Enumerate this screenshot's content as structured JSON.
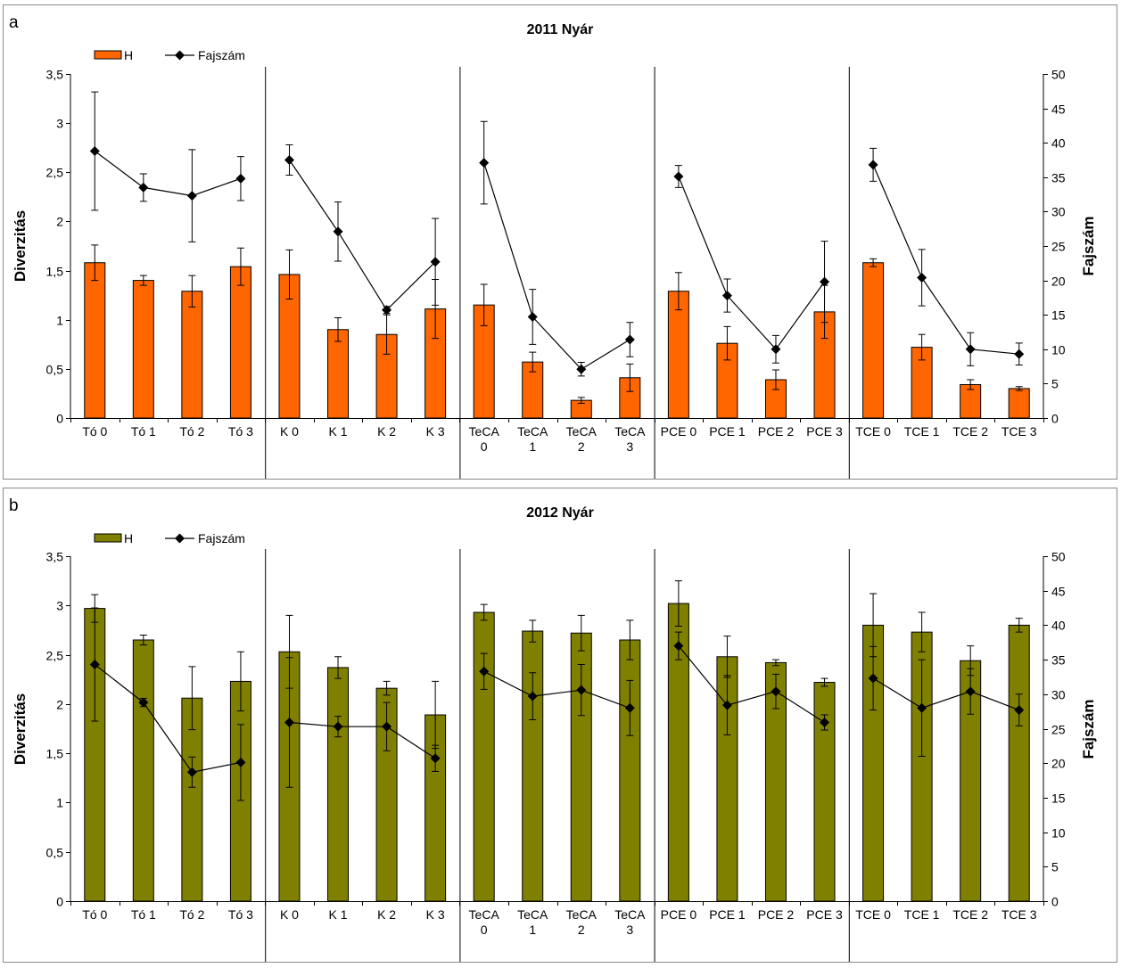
{
  "colors": {
    "panel_a_bar": "#FF6600",
    "panel_b_bar": "#808000",
    "line": "#000000"
  },
  "chart_data": [
    {
      "type": "bar",
      "panel": "a",
      "title": "2011 Nyár",
      "ylabel": "Diverzitás",
      "y2label": "Fajszám",
      "legend": [
        "H",
        "Fajszám"
      ],
      "legend_position": "top-left",
      "ylim": [
        0,
        3.5
      ],
      "y2lim": [
        0,
        50
      ],
      "ytick_labels": [
        "0",
        "0,5",
        "1",
        "1,5",
        "2",
        "2,5",
        "3",
        "3,5"
      ],
      "y2tick_labels": [
        "0",
        "5",
        "10",
        "15",
        "20",
        "25",
        "30",
        "35",
        "40",
        "45",
        "50"
      ],
      "categories": [
        "Tó 0",
        "Tó 1",
        "Tó 2",
        "Tó 3",
        "K 0",
        "K 1",
        "K 2",
        "K 3",
        "TeCA 0",
        "TeCA 1",
        "TeCA 2",
        "TeCA 3",
        "PCE 0",
        "PCE 1",
        "PCE 2",
        "PCE 3",
        "TCE 0",
        "TCE 1",
        "TCE 2",
        "TCE 3"
      ],
      "category_lines": [
        [
          "Tó 0"
        ],
        [
          "Tó 1"
        ],
        [
          "Tó 2"
        ],
        [
          "Tó 3"
        ],
        [
          "K 0"
        ],
        [
          "K 1"
        ],
        [
          "K 2"
        ],
        [
          "K 3"
        ],
        [
          "TeCA",
          "0"
        ],
        [
          "TeCA",
          "1"
        ],
        [
          "TeCA",
          "2"
        ],
        [
          "TeCA",
          "3"
        ],
        [
          "PCE 0"
        ],
        [
          "PCE 1"
        ],
        [
          "PCE 2"
        ],
        [
          "PCE 3"
        ],
        [
          "TCE 0"
        ],
        [
          "TCE 1"
        ],
        [
          "TCE 2"
        ],
        [
          "TCE 3"
        ]
      ],
      "groups": [
        "Tó",
        "K",
        "TeCA",
        "PCE",
        "TCE"
      ],
      "series": [
        {
          "name": "H",
          "kind": "bar",
          "axis": "left",
          "values": [
            1.58,
            1.4,
            1.29,
            1.54,
            1.46,
            0.9,
            0.85,
            1.11,
            1.15,
            0.57,
            0.18,
            0.41,
            1.29,
            0.76,
            0.39,
            1.08,
            1.58,
            0.72,
            0.34,
            0.3
          ],
          "err": [
            0.18,
            0.05,
            0.16,
            0.19,
            0.25,
            0.12,
            0.2,
            0.3,
            0.21,
            0.1,
            0.03,
            0.14,
            0.19,
            0.17,
            0.1,
            0.27,
            0.04,
            0.13,
            0.05,
            0.02
          ]
        },
        {
          "name": "Fajszám",
          "kind": "line",
          "axis": "right",
          "values": [
            38.8,
            33.5,
            32.3,
            34.8,
            37.5,
            27.1,
            15.7,
            22.7,
            37.1,
            14.7,
            7.1,
            11.4,
            35.1,
            17.8,
            10.0,
            19.8,
            36.8,
            20.4,
            10.0,
            9.3
          ],
          "err": [
            8.6,
            2.0,
            6.7,
            3.2,
            2.2,
            4.3,
            0.5,
            6.3,
            6.0,
            4.0,
            1.0,
            2.5,
            1.6,
            2.4,
            2.0,
            5.9,
            2.4,
            4.1,
            2.4,
            1.6
          ]
        }
      ]
    },
    {
      "type": "bar",
      "panel": "b",
      "title": "2012 Nyár",
      "ylabel": "Diverzitás",
      "y2label": "Fajszám",
      "legend": [
        "H",
        "Fajszám"
      ],
      "legend_position": "top-left",
      "ylim": [
        0,
        3.5
      ],
      "y2lim": [
        0,
        50
      ],
      "ytick_labels": [
        "0",
        "0,5",
        "1",
        "1,5",
        "2",
        "2,5",
        "3",
        "3,5"
      ],
      "y2tick_labels": [
        "0",
        "5",
        "10",
        "15",
        "20",
        "25",
        "30",
        "35",
        "40",
        "45",
        "50"
      ],
      "categories": [
        "Tó 0",
        "Tó 1",
        "Tó 2",
        "Tó 3",
        "K 0",
        "K 1",
        "K 2",
        "K 3",
        "TeCA 0",
        "TeCA 1",
        "TeCA 2",
        "TeCA 3",
        "PCE 0",
        "PCE 1",
        "PCE 2",
        "PCE 3",
        "TCE 0",
        "TCE 1",
        "TCE 2",
        "TCE 3"
      ],
      "category_lines": [
        [
          "Tó 0"
        ],
        [
          "Tó 1"
        ],
        [
          "Tó 2"
        ],
        [
          "Tó 3"
        ],
        [
          "K 0"
        ],
        [
          "K 1"
        ],
        [
          "K 2"
        ],
        [
          "K 3"
        ],
        [
          "TeCA",
          "0"
        ],
        [
          "TeCA",
          "1"
        ],
        [
          "TeCA",
          "2"
        ],
        [
          "TeCA",
          "3"
        ],
        [
          "PCE 0"
        ],
        [
          "PCE 1"
        ],
        [
          "PCE 2"
        ],
        [
          "PCE 3"
        ],
        [
          "TCE 0"
        ],
        [
          "TCE 1"
        ],
        [
          "TCE 2"
        ],
        [
          "TCE 3"
        ]
      ],
      "groups": [
        "Tó",
        "K",
        "TeCA",
        "PCE",
        "TCE"
      ],
      "series": [
        {
          "name": "H",
          "kind": "bar",
          "axis": "left",
          "values": [
            2.97,
            2.65,
            2.06,
            2.23,
            2.53,
            2.37,
            2.16,
            1.89,
            2.93,
            2.74,
            2.72,
            2.65,
            3.02,
            2.48,
            2.42,
            2.22,
            2.8,
            2.73,
            2.44,
            2.8
          ],
          "err": [
            0.14,
            0.05,
            0.32,
            0.3,
            0.37,
            0.11,
            0.07,
            0.34,
            0.08,
            0.11,
            0.18,
            0.2,
            0.23,
            0.21,
            0.03,
            0.04,
            0.32,
            0.2,
            0.15,
            0.07
          ]
        },
        {
          "name": "Fajszám",
          "kind": "line",
          "axis": "right",
          "values": [
            34.3,
            28.8,
            18.7,
            20.1,
            25.9,
            25.3,
            25.3,
            20.7,
            33.3,
            29.7,
            30.6,
            28.0,
            37.0,
            28.4,
            30.4,
            25.9,
            32.3,
            28.0,
            30.4,
            27.7
          ],
          "err": [
            8.2,
            0.6,
            2.2,
            5.5,
            9.4,
            1.5,
            3.5,
            1.9,
            2.6,
            3.4,
            3.7,
            4.0,
            2.0,
            4.3,
            2.5,
            1.1,
            4.6,
            7.0,
            3.3,
            2.3
          ]
        }
      ]
    }
  ]
}
